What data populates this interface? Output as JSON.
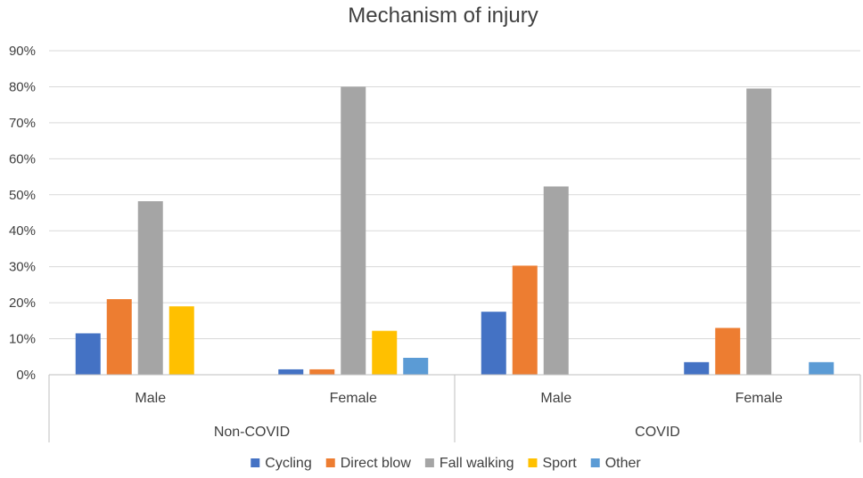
{
  "chart_data": {
    "type": "bar",
    "title": "Mechanism of injury",
    "xlabel": "",
    "ylabel": "",
    "ylim": [
      0,
      90
    ],
    "y_ticks": [
      "0%",
      "10%",
      "20%",
      "30%",
      "40%",
      "50%",
      "60%",
      "70%",
      "80%",
      "90%"
    ],
    "groups": [
      {
        "label": "Non-COVID",
        "categories": [
          "Male",
          "Female"
        ]
      },
      {
        "label": "COVID",
        "categories": [
          "Male",
          "Female"
        ]
      }
    ],
    "categories": [
      "Male",
      "Female",
      "Male",
      "Female"
    ],
    "series": [
      {
        "name": "Cycling",
        "color": "#4472c4",
        "values": [
          11.5,
          1.5,
          17.5,
          3.5
        ]
      },
      {
        "name": "Direct blow",
        "color": "#ed7d31",
        "values": [
          21,
          1.5,
          30.3,
          13
        ]
      },
      {
        "name": "Fall walking",
        "color": "#a5a5a5",
        "values": [
          48.2,
          80,
          52.3,
          79.5
        ]
      },
      {
        "name": "Sport",
        "color": "#ffc000",
        "values": [
          19,
          12.2,
          0,
          0
        ]
      },
      {
        "name": "Other",
        "color": "#5b9bd5",
        "values": [
          0,
          4.7,
          0,
          3.5
        ]
      }
    ],
    "grid": true,
    "legend": "bottom"
  }
}
